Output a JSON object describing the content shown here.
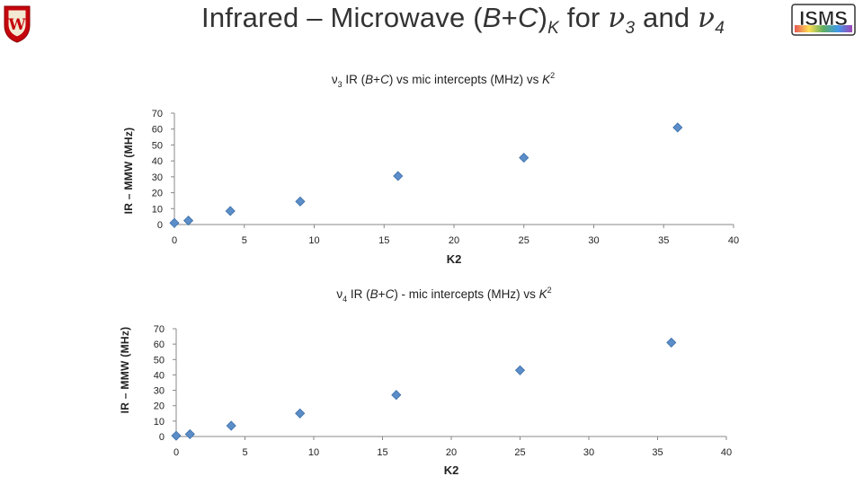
{
  "slide": {
    "title_prefix": "Infrared – Microwave (",
    "title_B": "B",
    "title_plus": "+",
    "title_C": "C",
    "title_close": ")",
    "title_sub_K": "K",
    "title_for": " for ",
    "title_nu": "ν",
    "title_sub_3": "3",
    "title_and": " and ",
    "title_sub_4": "4",
    "logo_right_text": "ISMS",
    "logo_left_letter": "W"
  },
  "chart_data": [
    {
      "type": "scatter",
      "title_parts": {
        "nu": "ν",
        "sub": "3",
        "pre": " IR (",
        "B": "B",
        "plus": "+",
        "C": "C",
        "post": ") vs mic intercepts (MHz) vs ",
        "K": "K",
        "sup": "2"
      },
      "xlabel": "K2",
      "ylabel": "IR – MMW (MHz)",
      "xlim": [
        0,
        40
      ],
      "ylim": [
        0,
        70
      ],
      "xticks": [
        0,
        5,
        10,
        15,
        20,
        25,
        30,
        35,
        40
      ],
      "yticks": [
        0,
        10,
        20,
        30,
        40,
        50,
        60,
        70
      ],
      "series": [
        {
          "x": [
            0,
            1,
            4,
            9,
            16,
            25,
            36
          ],
          "y": [
            1,
            2.5,
            8.5,
            14.5,
            30.5,
            42,
            61
          ]
        }
      ],
      "marker_color": "#5B8DC9",
      "grid": false
    },
    {
      "type": "scatter",
      "title_parts": {
        "nu": "ν",
        "sub": "4",
        "pre": " IR (",
        "B": "B",
        "plus": "+",
        "C": "C",
        "post": ") - mic intercepts (MHz) vs ",
        "K": "K",
        "sup": "2"
      },
      "xlabel": "K2",
      "ylabel": "IR – MMW (MHz)",
      "xlim": [
        0,
        40
      ],
      "ylim": [
        0,
        70
      ],
      "xticks": [
        0,
        5,
        10,
        15,
        20,
        25,
        30,
        35,
        40
      ],
      "yticks": [
        0,
        10,
        20,
        30,
        40,
        50,
        60,
        70
      ],
      "series": [
        {
          "x": [
            0,
            1,
            4,
            9,
            16,
            25,
            36
          ],
          "y": [
            0.5,
            1.5,
            7,
            15,
            27,
            43,
            61
          ]
        }
      ],
      "marker_color": "#5B8DC9",
      "grid": false
    }
  ]
}
